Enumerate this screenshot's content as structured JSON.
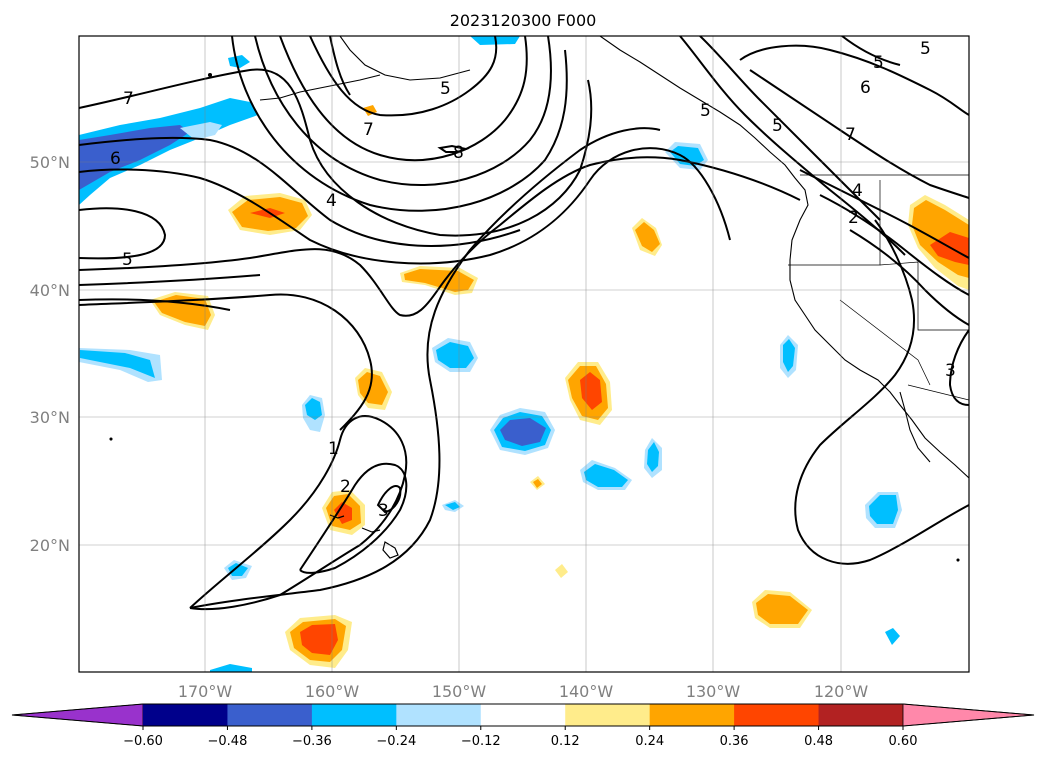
{
  "title": "2023120300 F000",
  "latitude_labels": [
    "50°N",
    "40°N",
    "30°N",
    "20°N"
  ],
  "longitude_labels": [
    "170°W",
    "160°W",
    "150°W",
    "140°W",
    "130°W",
    "120°W"
  ],
  "colorbar": {
    "tick_labels": [
      "−0.60",
      "−0.48",
      "−0.36",
      "−0.24",
      "−0.12",
      "0.12",
      "0.24",
      "0.36",
      "0.48",
      "0.60"
    ],
    "colors": [
      "#9932cc",
      "#00008b",
      "#3a5fcd",
      "#00bfff",
      "#b0e2ff",
      "#ffffff",
      "#ffec8b",
      "#ffa500",
      "#ff4500",
      "#b22222",
      "#ff88aa"
    ]
  },
  "contour_labels": [
    "7",
    "5",
    "7",
    "5",
    "6",
    "7",
    "8",
    "6",
    "4",
    "5",
    "4",
    "2",
    "5",
    "1",
    "2",
    "3",
    "3"
  ],
  "line_color": "#000000",
  "land_color": "#000000"
}
